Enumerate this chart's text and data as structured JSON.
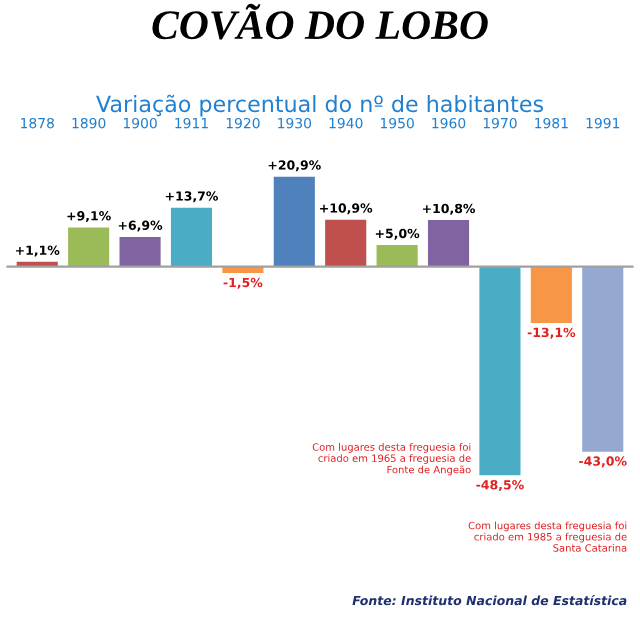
{
  "chart_data": {
    "type": "bar",
    "title": "COVÃO DO LOBO",
    "subtitle": "Variação percentual do nº de habitantes",
    "categories": [
      "1878",
      "1890",
      "1900",
      "1911",
      "1920",
      "1930",
      "1940",
      "1950",
      "1960",
      "1970",
      "1981",
      "1991"
    ],
    "values": [
      1.1,
      9.1,
      6.9,
      13.7,
      -1.5,
      20.9,
      10.9,
      5.0,
      10.8,
      -48.5,
      -13.1,
      -43.0
    ],
    "value_labels": [
      "+1,1%",
      "+9,1%",
      "+6,9%",
      "+13,7%",
      "-1,5%",
      "+20,9%",
      "+10,9%",
      "+5,0%",
      "+10,8%",
      "-48,5%",
      "-13,1%",
      "-43,0%"
    ],
    "colors": [
      "#c0504d",
      "#9bbb59",
      "#8064a2",
      "#4bacc6",
      "#f79646",
      "#4f81bd",
      "#c0504d",
      "#9bbb59",
      "#8064a2",
      "#4bacc6",
      "#f79646",
      "#95a9d0"
    ],
    "annotations": [
      {
        "text": "Com lugares desta freguesia foi\ncriado em 1965 a freguesia de\nFonte de Angeão",
        "x": "1970",
        "y": -48.5
      },
      "Com lugares desta freguesia foi\ncriado em 1985 a freguesia de\nSanta Catarina",
      "Fonte: Instituto Nacional de Estatística"
    ],
    "tick_labels": "x",
    "grid": false,
    "legend": false
  }
}
